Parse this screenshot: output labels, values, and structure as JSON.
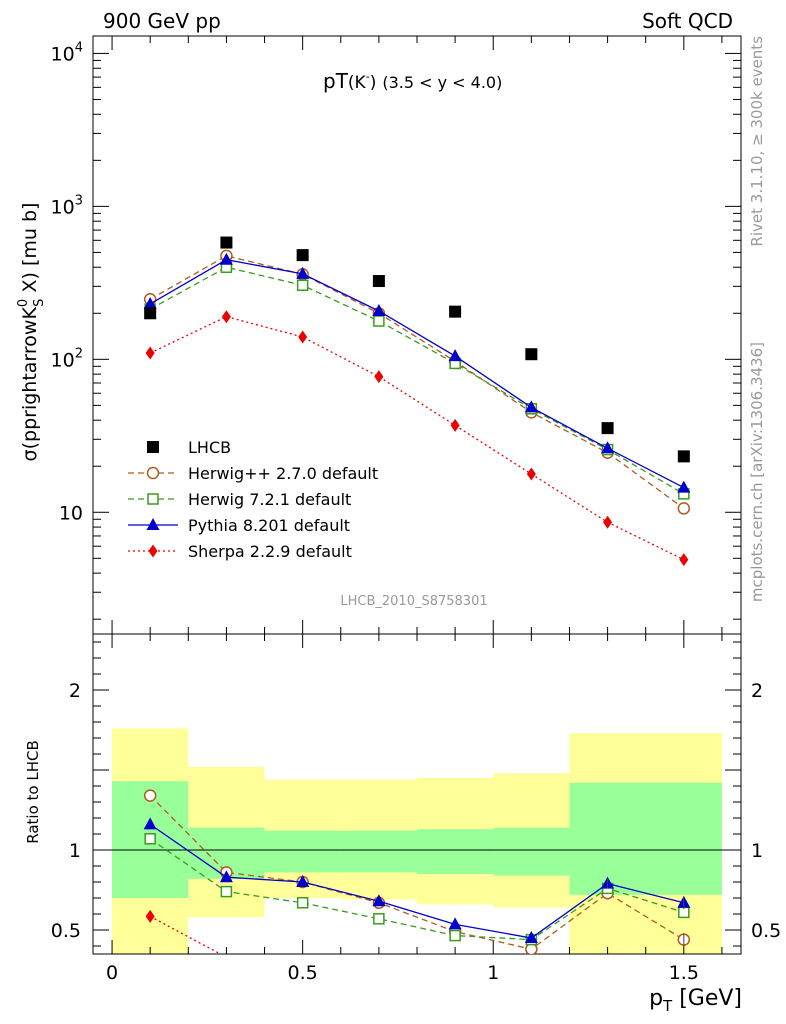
{
  "header": {
    "left": "900 GeV pp",
    "right": "Soft QCD"
  },
  "side": {
    "rivet": "Rivet 3.1.10, ≥ 300k events",
    "mcplots": "mcplots.cern.ch [arXiv:1306.3436]"
  },
  "chart_data": [
    {
      "type": "scatter",
      "title": "pT(K⁻) (3.5 < y < 4.0)",
      "title_main": "pT",
      "title_k": "(K",
      "title_k_sup": "-",
      "title_k_close": ")",
      "title_range": "(3.5 < y < 4.0)",
      "watermark": "LHCB_2010_S8758301",
      "ylabel": "σ(pprightarrowK^0_S X) [mu b]",
      "ylabel_main": "σ(pprightarrowK",
      "ylabel_sup": "0",
      "ylabel_sub": "S",
      "ylabel_end": " X) [mu b]",
      "yscale": "log",
      "ylim": [
        1.6,
        13000
      ],
      "xlim": [
        -0.05,
        1.65
      ],
      "yticks": [
        {
          "v": 10,
          "base": "10",
          "exp": ""
        },
        {
          "v": 100,
          "base": "10",
          "exp": "2"
        },
        {
          "v": 1000,
          "base": "10",
          "exp": "3"
        },
        {
          "v": 10000,
          "base": "10",
          "exp": "4"
        }
      ],
      "x": [
        0.1,
        0.3,
        0.5,
        0.7,
        0.9,
        1.1,
        1.3,
        1.5
      ],
      "legend_position": "bottom-left",
      "series": [
        {
          "name": "LHCB",
          "color": "#000000",
          "marker": "square-filled",
          "line": "none",
          "values": [
            200,
            580,
            480,
            325,
            205,
            108,
            35.5,
            23.2
          ]
        },
        {
          "name": "Herwig++ 2.7.0 default",
          "color": "#b35a1f",
          "marker": "circle-open",
          "line": "dashed",
          "values": [
            247,
            475,
            360,
            200,
            97,
            45,
            24.5,
            10.6
          ]
        },
        {
          "name": "Herwig 7.2.1 default",
          "color": "#3a9b20",
          "marker": "square-open",
          "line": "dashed",
          "values": [
            213,
            400,
            305,
            178,
            94,
            47.5,
            25.7,
            13.2
          ]
        },
        {
          "name": "Pythia 8.201 default",
          "color": "#0000cc",
          "marker": "triangle-filled",
          "line": "solid",
          "values": [
            230,
            448,
            362,
            207,
            105,
            48.5,
            26.2,
            14.5
          ]
        },
        {
          "name": "Sherpa 2.2.9 default",
          "color": "#ee0000",
          "marker": "diamond-filled",
          "line": "dotted",
          "values": [
            110,
            190,
            140,
            77,
            37,
            17.8,
            8.6,
            4.9
          ]
        }
      ]
    },
    {
      "type": "scatter",
      "ylabel": "Ratio to LHCB",
      "xlabel_main": "p",
      "xlabel_sub": "T",
      "xlabel_end": " [GeV]",
      "ylim": [
        0.35,
        2.35
      ],
      "xlim": [
        -0.05,
        1.65
      ],
      "yticks": [
        {
          "v": 0.5,
          "label": "0.5"
        },
        {
          "v": 1,
          "label": "1"
        },
        {
          "v": 2,
          "label": "2"
        }
      ],
      "xticks": [
        {
          "v": 0,
          "label": "0"
        },
        {
          "v": 0.5,
          "label": "0.5"
        },
        {
          "v": 1,
          "label": "1"
        },
        {
          "v": 1.5,
          "label": "1.5"
        }
      ],
      "bands": [
        {
          "x0": 0.0,
          "x1": 0.2,
          "green": [
            0.7,
            1.43
          ],
          "yellow": [
            0.35,
            1.76
          ]
        },
        {
          "x0": 0.2,
          "x1": 0.4,
          "green": [
            0.82,
            1.14
          ],
          "yellow": [
            0.58,
            1.52
          ]
        },
        {
          "x0": 0.4,
          "x1": 0.6,
          "green": [
            0.86,
            1.12
          ],
          "yellow": [
            0.7,
            1.44
          ]
        },
        {
          "x0": 0.6,
          "x1": 0.8,
          "green": [
            0.86,
            1.12
          ],
          "yellow": [
            0.69,
            1.44
          ]
        },
        {
          "x0": 0.8,
          "x1": 1.0,
          "green": [
            0.85,
            1.13
          ],
          "yellow": [
            0.66,
            1.45
          ]
        },
        {
          "x0": 1.0,
          "x1": 1.2,
          "green": [
            0.84,
            1.14
          ],
          "yellow": [
            0.64,
            1.48
          ]
        },
        {
          "x0": 1.2,
          "x1": 1.6,
          "green": [
            0.72,
            1.42
          ],
          "yellow": [
            0.35,
            1.73
          ]
        }
      ],
      "series": [
        {
          "name": "Herwig++ 2.7.0 default",
          "color": "#b35a1f",
          "marker": "circle-open",
          "line": "dashed",
          "values": [
            1.34,
            0.86,
            0.8,
            0.67,
            0.49,
            0.38,
            0.73,
            0.44
          ]
        },
        {
          "name": "Herwig 7.2.1 default",
          "color": "#3a9b20",
          "marker": "square-open",
          "line": "dashed",
          "values": [
            1.07,
            0.74,
            0.67,
            0.57,
            0.465,
            0.44,
            0.76,
            0.61
          ]
        },
        {
          "name": "Pythia 8.201 default",
          "color": "#0000cc",
          "marker": "triangle-filled",
          "line": "solid",
          "values": [
            1.16,
            0.83,
            0.8,
            0.68,
            0.535,
            0.45,
            0.79,
            0.67
          ]
        },
        {
          "name": "Sherpa 2.2.9 default",
          "color": "#ee0000",
          "marker": "diamond-filled",
          "line": "dotted",
          "values": [
            0.585,
            0.33,
            null,
            null,
            null,
            null,
            null,
            null
          ]
        }
      ]
    }
  ]
}
